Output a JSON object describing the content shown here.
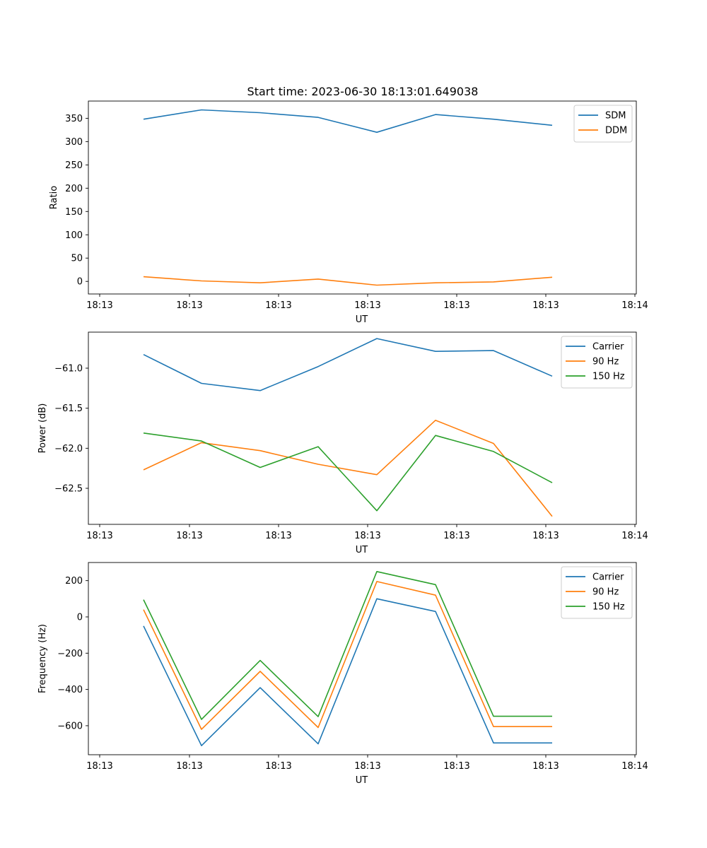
{
  "figure_title": "Start time: 2023-06-30 18:13:01.649038",
  "chart_data": [
    {
      "type": "line",
      "title": "Start time: 2023-06-30 18:13:01.649038",
      "xlabel": "UT",
      "ylabel": "Ratio",
      "x": [
        "18:13",
        "18:13",
        "18:13",
        "18:13",
        "18:13",
        "18:13",
        "18:13",
        "18:13"
      ],
      "x_tick_labels": [
        "18:13",
        "18:13",
        "18:13",
        "18:13",
        "18:13",
        "18:13",
        "18:13",
        "18:14"
      ],
      "y_ticks": [
        0,
        50,
        100,
        150,
        200,
        250,
        300,
        350
      ],
      "ylim": [
        -27,
        387
      ],
      "legend_position": "top-right",
      "grid": false,
      "series": [
        {
          "name": "SDM",
          "color": "#1f77b4",
          "values": [
            348,
            368,
            362,
            352,
            320,
            358,
            348,
            335
          ]
        },
        {
          "name": "DDM",
          "color": "#ff7f0e",
          "values": [
            10,
            1,
            -3,
            5,
            -8,
            -3,
            -1,
            9
          ]
        }
      ]
    },
    {
      "type": "line",
      "title": "",
      "xlabel": "UT",
      "ylabel": "Power (dB)",
      "x": [
        "18:13",
        "18:13",
        "18:13",
        "18:13",
        "18:13",
        "18:13",
        "18:13",
        "18:13"
      ],
      "x_tick_labels": [
        "18:13",
        "18:13",
        "18:13",
        "18:13",
        "18:13",
        "18:13",
        "18:13",
        "18:14"
      ],
      "y_ticks": [
        -62.5,
        -62.0,
        -61.5,
        -61.0
      ],
      "y_tick_labels": [
        "−62.5",
        "−62.0",
        "−61.5",
        "−61.0"
      ],
      "ylim": [
        -62.95,
        -60.55
      ],
      "legend_position": "top-right",
      "grid": false,
      "series": [
        {
          "name": "Carrier",
          "color": "#1f77b4",
          "values": [
            -60.83,
            -61.19,
            -61.28,
            -60.98,
            -60.63,
            -60.79,
            -60.78,
            -61.1
          ]
        },
        {
          "name": "90 Hz",
          "color": "#ff7f0e",
          "values": [
            -62.27,
            -61.93,
            -62.03,
            -62.2,
            -62.33,
            -61.65,
            -61.94,
            -62.85
          ]
        },
        {
          "name": "150 Hz",
          "color": "#2ca02c",
          "values": [
            -61.81,
            -61.91,
            -62.24,
            -61.98,
            -62.78,
            -61.84,
            -62.04,
            -62.43
          ]
        }
      ]
    },
    {
      "type": "line",
      "title": "",
      "xlabel": "UT",
      "ylabel": "Frequency (Hz)",
      "x": [
        "18:13",
        "18:13",
        "18:13",
        "18:13",
        "18:13",
        "18:13",
        "18:13",
        "18:13"
      ],
      "x_tick_labels": [
        "18:13",
        "18:13",
        "18:13",
        "18:13",
        "18:13",
        "18:13",
        "18:13",
        "18:14"
      ],
      "y_ticks": [
        -600,
        -400,
        -200,
        0,
        200
      ],
      "y_tick_labels": [
        "−600",
        "−400",
        "−200",
        "0",
        "200"
      ],
      "ylim": [
        -760,
        300
      ],
      "legend_position": "top-right",
      "grid": false,
      "series": [
        {
          "name": "Carrier",
          "color": "#1f77b4",
          "values": [
            -50,
            -710,
            -390,
            -700,
            100,
            30,
            -695,
            -695
          ]
        },
        {
          "name": "90 Hz",
          "color": "#ff7f0e",
          "values": [
            40,
            -620,
            -300,
            -610,
            195,
            120,
            -605,
            -605
          ]
        },
        {
          "name": "150 Hz",
          "color": "#2ca02c",
          "values": [
            95,
            -565,
            -240,
            -550,
            250,
            178,
            -548,
            -548
          ]
        }
      ]
    }
  ]
}
